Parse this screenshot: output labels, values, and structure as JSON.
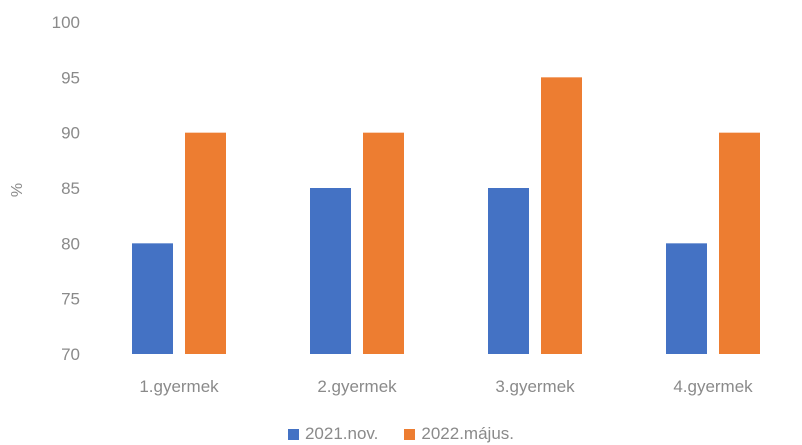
{
  "chart_data": {
    "type": "bar",
    "categories": [
      "1.gyermek",
      "2.gyermek",
      "3.gyermek",
      "4.gyermek"
    ],
    "series": [
      {
        "name": "2021.nov.",
        "values": [
          80,
          85,
          85,
          80
        ],
        "color": "#4472c4"
      },
      {
        "name": "2022.május.",
        "values": [
          90,
          90,
          95,
          90
        ],
        "color": "#ed7d31"
      }
    ],
    "xlabel": "",
    "ylabel": "%",
    "ylim": [
      70,
      100
    ],
    "yticks": [
      70,
      75,
      80,
      85,
      90,
      95,
      100
    ],
    "grid": false,
    "legend": "bottom"
  }
}
